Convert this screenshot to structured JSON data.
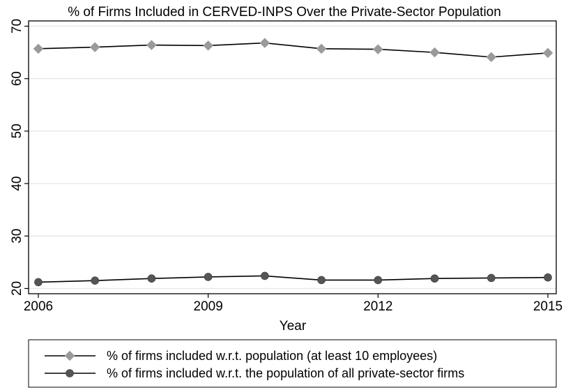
{
  "chart_data": {
    "type": "line",
    "title": "% of Firms Included in CERVED-INPS Over the Private-Sector Population",
    "xlabel": "Year",
    "ylabel": "",
    "x": [
      2006,
      2007,
      2008,
      2009,
      2010,
      2011,
      2012,
      2013,
      2014,
      2015
    ],
    "xticks": [
      2006,
      2009,
      2012,
      2015
    ],
    "yticks": [
      20,
      30,
      40,
      50,
      60,
      70
    ],
    "xlim": [
      2006,
      2015
    ],
    "ylim": [
      19,
      71
    ],
    "grid": true,
    "legend_position": "bottom",
    "series": [
      {
        "name": "% of firms included w.r.t. population (at least 10 employees)",
        "marker": "diamond",
        "color": "#9a9a9a",
        "values": [
          65.7,
          66.0,
          66.4,
          66.3,
          66.8,
          65.7,
          65.6,
          65.0,
          64.1,
          64.9
        ]
      },
      {
        "name": "% of firms included w.r.t. the population of all private-sector firms",
        "marker": "circle",
        "color": "#555555",
        "values": [
          21.2,
          21.5,
          21.9,
          22.2,
          22.4,
          21.6,
          21.6,
          21.9,
          22.0,
          22.1
        ]
      }
    ]
  }
}
